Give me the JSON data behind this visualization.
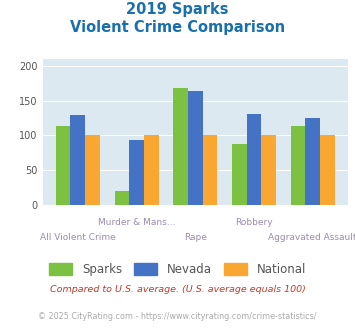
{
  "title_line1": "2019 Sparks",
  "title_line2": "Violent Crime Comparison",
  "categories": [
    "All Violent Crime",
    "Murder & Mans...",
    "Rape",
    "Robbery",
    "Aggravated Assault"
  ],
  "sparks": [
    113,
    20,
    168,
    87,
    113
  ],
  "nevada": [
    129,
    93,
    165,
    131,
    125
  ],
  "national": [
    100,
    100,
    100,
    100,
    100
  ],
  "sparks_color": "#7cc142",
  "nevada_color": "#4472c4",
  "national_color": "#faa732",
  "ylim": [
    0,
    210
  ],
  "yticks": [
    0,
    50,
    100,
    150,
    200
  ],
  "bg_color": "#dce9f0",
  "title_color": "#1a6fad",
  "xlabel_color": "#9b8cb0",
  "footnote1": "Compared to U.S. average. (U.S. average equals 100)",
  "footnote2": "© 2025 CityRating.com - https://www.cityrating.com/crime-statistics/",
  "footnote1_color": "#c0392b",
  "footnote2_color": "#aaaaaa",
  "bar_width": 0.25
}
